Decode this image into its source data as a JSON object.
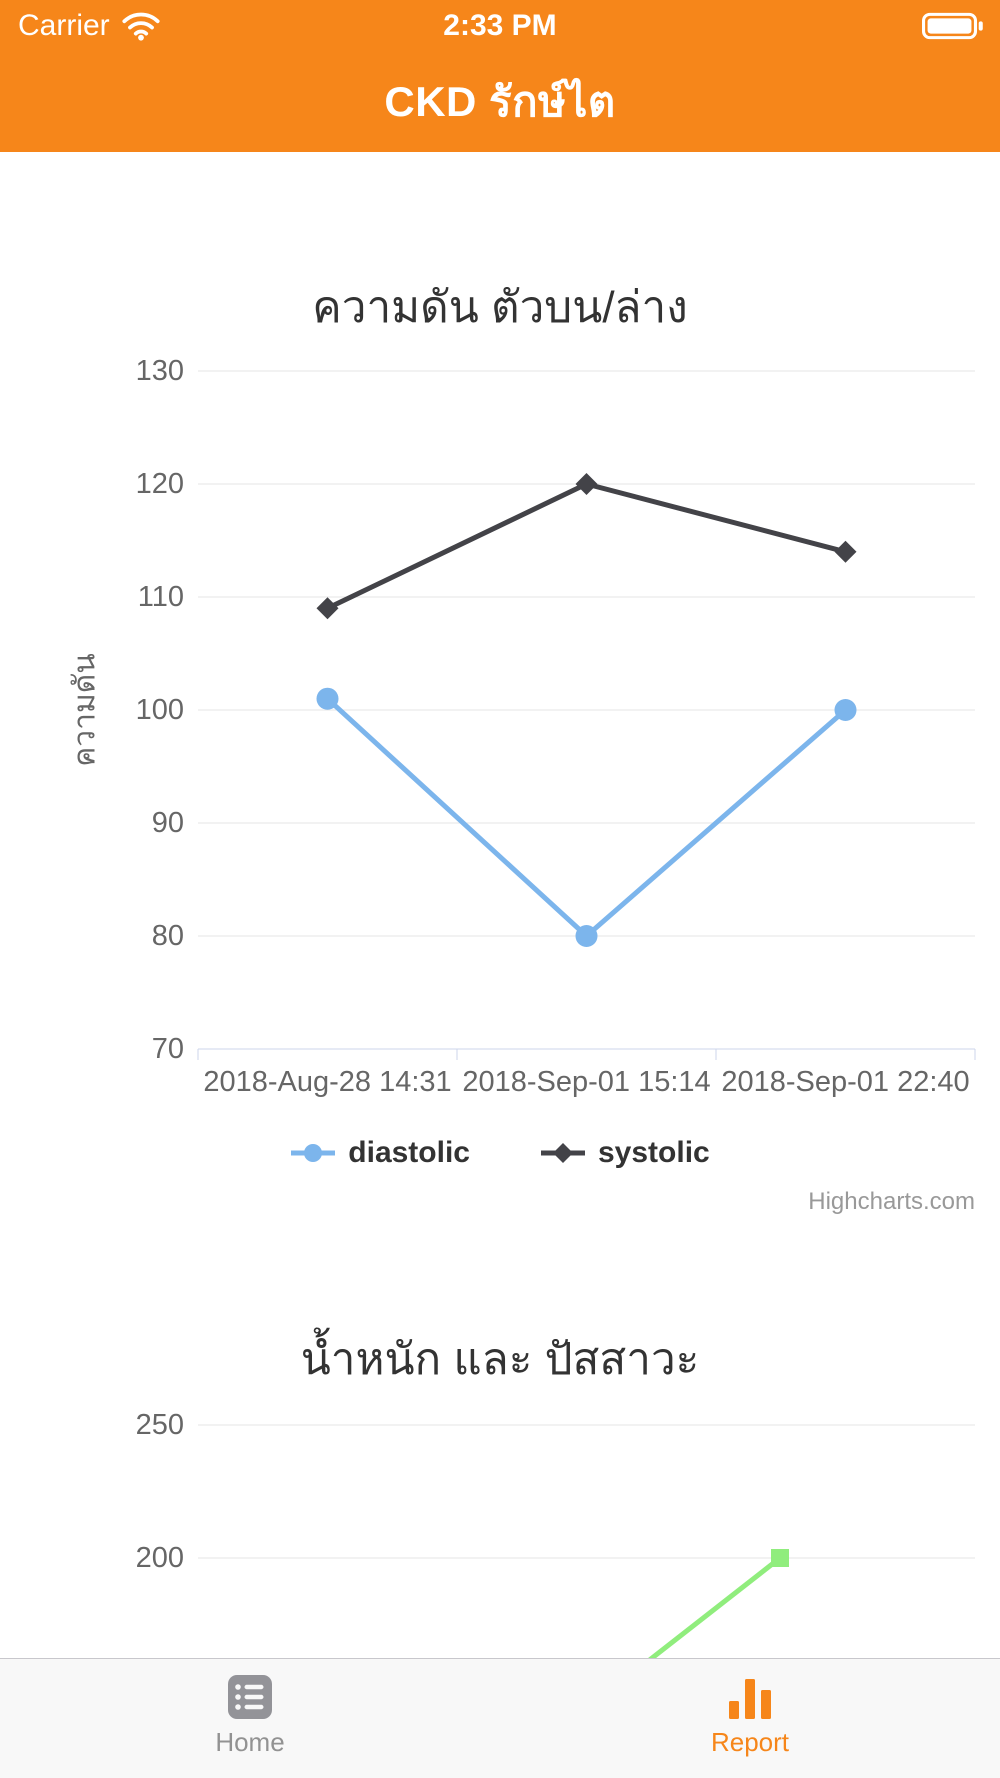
{
  "status_bar": {
    "carrier": "Carrier",
    "time": "2:33 PM"
  },
  "nav_bar": {
    "title": "CKD รักษ์ไต"
  },
  "colors": {
    "header_bg": "#f6861a",
    "diastolic": "#7cb5ec",
    "systolic": "#434348",
    "green_series": "#90ed7d",
    "grid": "#e6e6e6",
    "axis_line": "#ccd6eb",
    "tick_label": "#666666",
    "title_text": "#333333",
    "credit": "#999999",
    "tab_active": "#f6861a",
    "tab_inactive": "#929292"
  },
  "chart_data": [
    {
      "type": "line",
      "title": "ความดัน ตัวบน/ล่าง",
      "xlabel": "",
      "ylabel": "ความดัน",
      "ylim": [
        70,
        130
      ],
      "yticks": [
        130,
        120,
        110,
        100,
        90,
        80,
        70
      ],
      "grid": true,
      "legend_position": "bottom",
      "categories": [
        "2018-Aug-28 14:31",
        "2018-Sep-01 15:14",
        "2018-Sep-01 22:40"
      ],
      "series": [
        {
          "name": "diastolic",
          "color": "#7cb5ec",
          "marker": "circle",
          "values": [
            101,
            80,
            100
          ]
        },
        {
          "name": "systolic",
          "color": "#434348",
          "marker": "diamond",
          "values": [
            109,
            120,
            114
          ]
        }
      ],
      "credit": "Highcharts.com"
    },
    {
      "type": "line",
      "title": "น้ำหนัก และ ปัสสาวะ",
      "partially_visible": true,
      "yticks_visible": [
        250,
        200
      ],
      "series": [
        {
          "name": "",
          "color": "#90ed7d",
          "marker": "square",
          "visible_values": [
            200
          ]
        }
      ]
    }
  ],
  "tab_bar": {
    "items": [
      {
        "label": "Home",
        "active": false
      },
      {
        "label": "Report",
        "active": true
      }
    ]
  }
}
